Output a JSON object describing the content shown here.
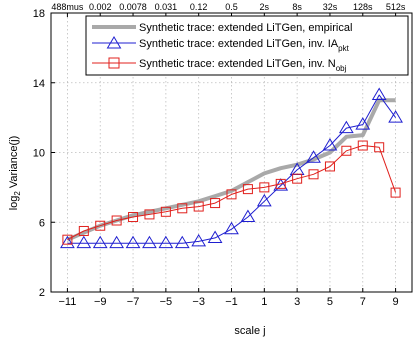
{
  "chart_data": {
    "type": "line",
    "xlabel": "scale j",
    "ylabel_main": "log",
    "ylabel_sub": "2",
    "ylabel_rest": " Variance(j)",
    "xlim": [
      -12,
      10
    ],
    "ylim": [
      2,
      18
    ],
    "x_ticks": [
      -11,
      -9,
      -7,
      -5,
      -3,
      -1,
      1,
      3,
      5,
      7,
      9
    ],
    "x_tick_labels": [
      "−11",
      "−9",
      "−7",
      "−5",
      "−3",
      "−1",
      "1",
      "3",
      "5",
      "7",
      "9"
    ],
    "y_ticks": [
      2,
      6,
      10,
      14,
      18
    ],
    "y_tick_labels": [
      "2",
      "6",
      "10",
      "14",
      "18"
    ],
    "top_ticks": [
      -11,
      -9,
      -7,
      -5,
      -3,
      -1,
      1,
      3,
      5,
      7,
      9
    ],
    "top_tick_labels": [
      "488mus",
      "0.002",
      "0.0078",
      "0.031",
      "0.12",
      "0.5",
      "2s",
      "8s",
      "32s",
      "128s",
      "512s"
    ],
    "grid": true,
    "legend_position": "top-right",
    "series": [
      {
        "name": "Synthetic trace: extended LiTGen, empirical",
        "color": "#a9a9a9",
        "marker": "none",
        "x": [
          -11,
          -10,
          -9,
          -8,
          -7,
          -6,
          -5,
          -4,
          -3,
          -2,
          -1,
          0,
          1,
          2,
          3,
          4,
          5,
          6,
          7,
          8,
          9
        ],
        "y": [
          5.0,
          5.4,
          5.8,
          6.1,
          6.4,
          6.6,
          6.8,
          7.0,
          7.2,
          7.5,
          7.8,
          8.3,
          8.8,
          9.1,
          9.3,
          9.6,
          10.0,
          10.9,
          11.0,
          13.0,
          13.0
        ]
      },
      {
        "name": "Synthetic trace: extended LiTGen, inv. IA",
        "name_sub": "pkt",
        "color": "#1f1fd0",
        "marker": "triangle",
        "x": [
          -11,
          -10,
          -9,
          -8,
          -7,
          -6,
          -5,
          -4,
          -3,
          -2,
          -1,
          0,
          1,
          2,
          3,
          4,
          5,
          6,
          7,
          8,
          9
        ],
        "y": [
          4.8,
          4.8,
          4.8,
          4.8,
          4.8,
          4.8,
          4.8,
          4.8,
          4.9,
          5.1,
          5.6,
          6.3,
          7.2,
          8.1,
          9.0,
          9.7,
          10.4,
          11.4,
          11.6,
          13.3,
          12.0
        ]
      },
      {
        "name": "Synthetic trace: extended LiTGen, inv. N",
        "name_sub": "obj",
        "color": "#e0201c",
        "marker": "square",
        "x": [
          -11,
          -10,
          -9,
          -8,
          -7,
          -6,
          -5,
          -4,
          -3,
          -2,
          -1,
          0,
          1,
          2,
          3,
          4,
          5,
          6,
          7,
          8,
          9
        ],
        "y": [
          5.0,
          5.5,
          5.8,
          6.1,
          6.3,
          6.45,
          6.6,
          6.8,
          6.9,
          7.1,
          7.6,
          7.9,
          8.0,
          8.2,
          8.5,
          8.75,
          9.2,
          10.1,
          10.4,
          10.3,
          7.7
        ]
      }
    ]
  }
}
